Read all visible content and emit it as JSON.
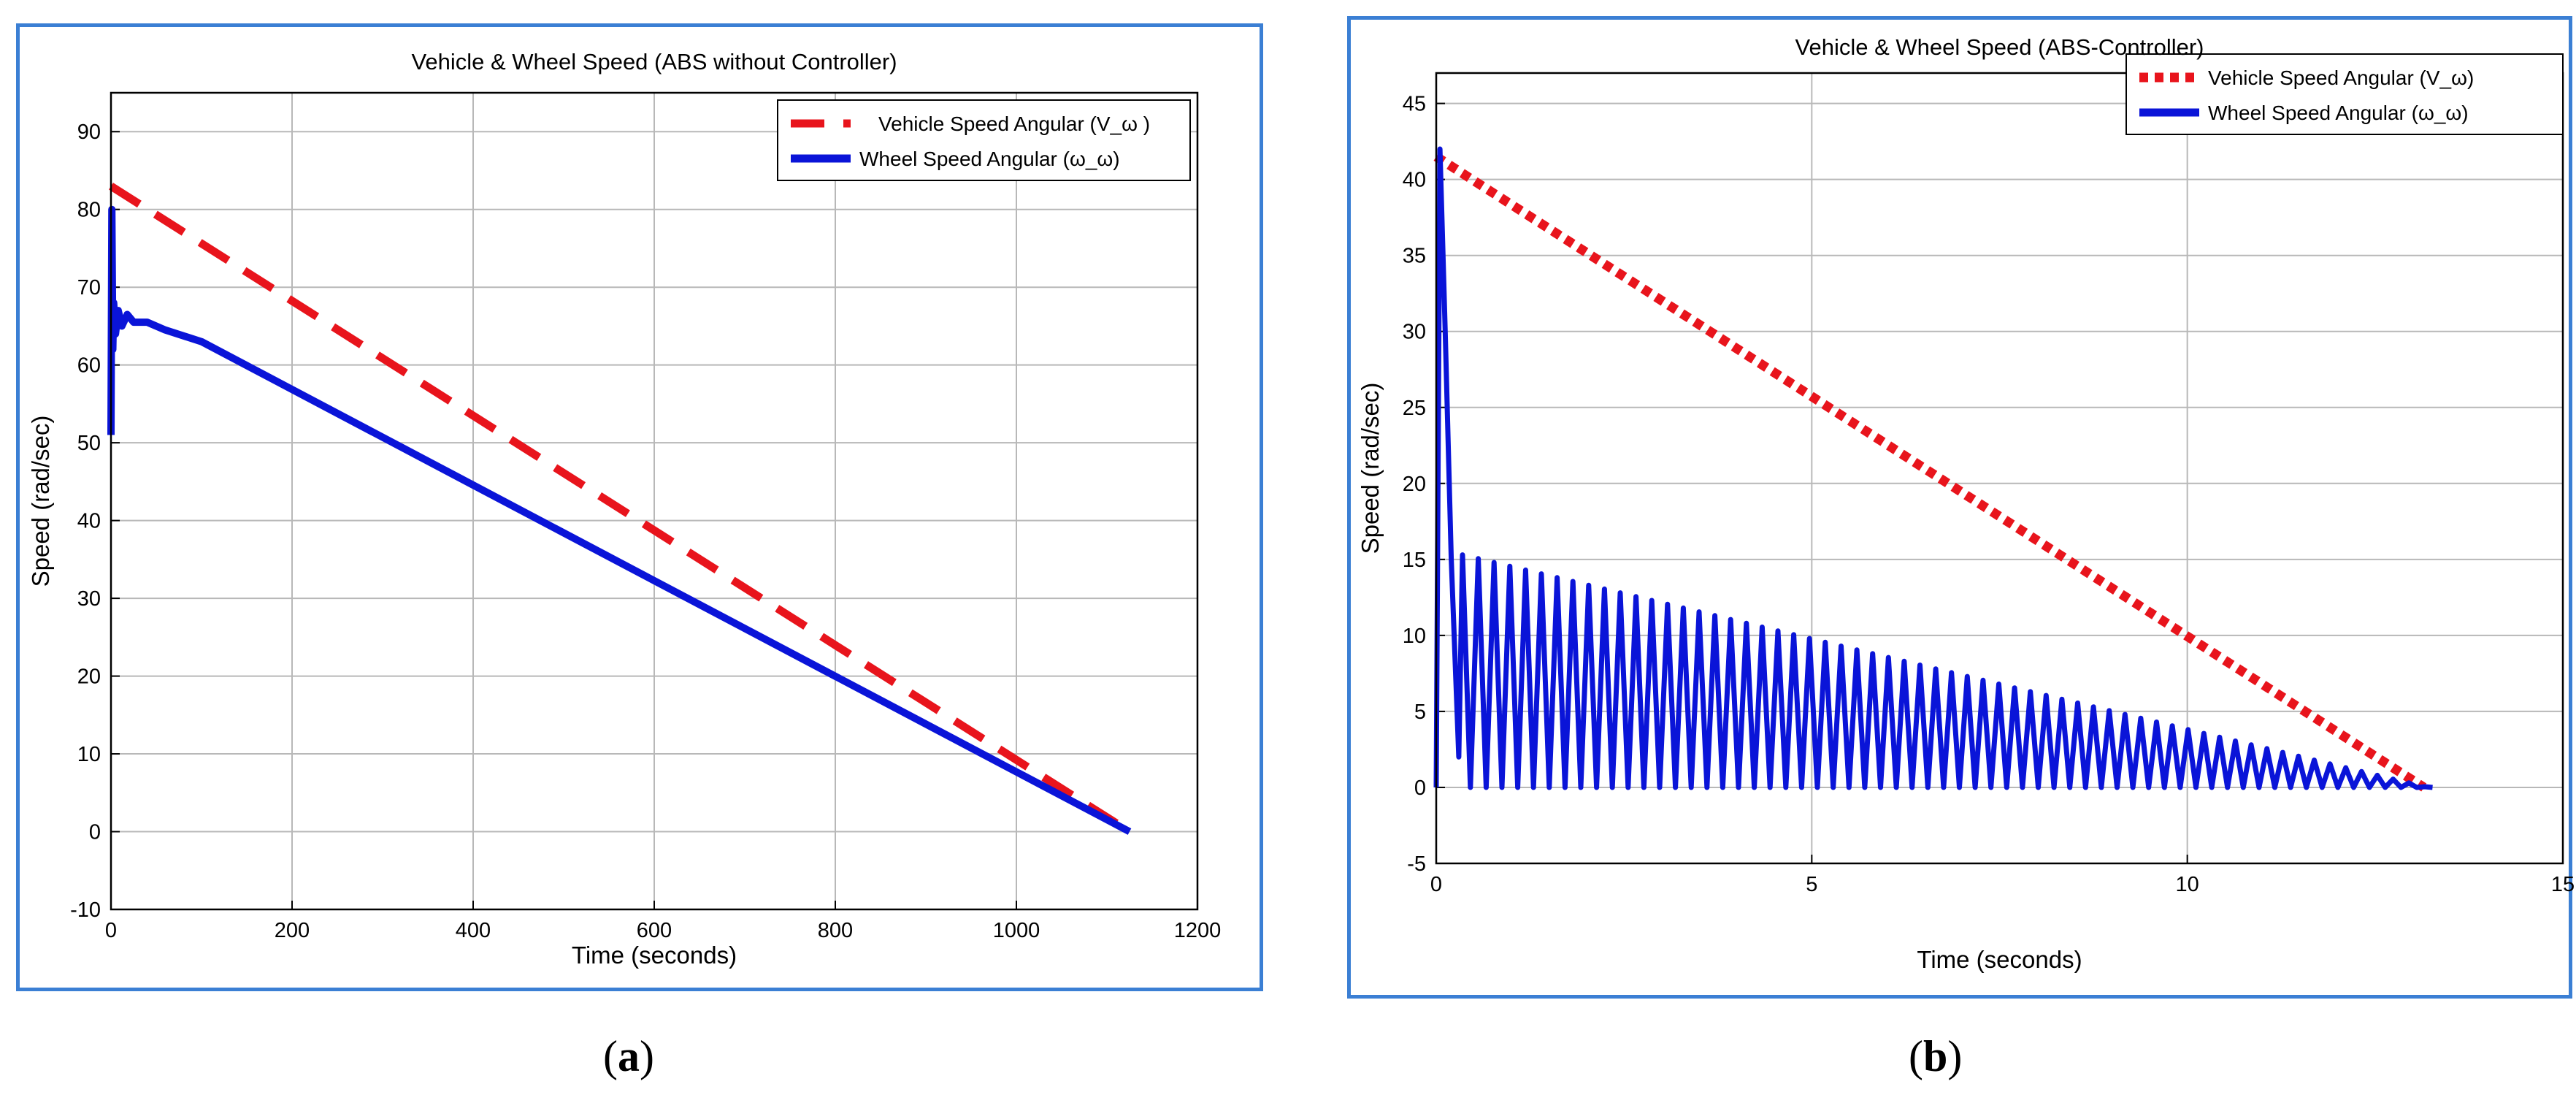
{
  "figure": {
    "caption_a": {
      "open": "(",
      "letter": "a",
      "close": ")"
    },
    "caption_b": {
      "open": "(",
      "letter": "b",
      "close": ")"
    }
  },
  "colors": {
    "panel_border": "#3b7fd4",
    "vehicle": "#e8141c",
    "wheel": "#0a14d8",
    "grid": "#b8b8b8"
  },
  "chart_data": [
    {
      "id": "a",
      "type": "line",
      "title": "Vehicle & Wheel Speed (ABS without Controller)",
      "xlabel": "Time (seconds)",
      "ylabel": "Speed (rad/sec)",
      "xlim": [
        0,
        1200
      ],
      "ylim": [
        -10,
        95
      ],
      "xticks": [
        0,
        200,
        400,
        600,
        800,
        1000,
        1200
      ],
      "yticks": [
        -10,
        0,
        10,
        20,
        30,
        40,
        50,
        60,
        70,
        80,
        90
      ],
      "grid": true,
      "legend": "top-right",
      "series": [
        {
          "name": "Vehicle Speed Angular (V_ω )",
          "style": "dashed",
          "color": "#e8141c",
          "x": [
            0,
            1125
          ],
          "y": [
            83,
            0
          ]
        },
        {
          "name": "Wheel Speed Angular (ω_ω)",
          "style": "solid",
          "color": "#0a14d8",
          "x": [
            0,
            1,
            2,
            3,
            5,
            8,
            12,
            18,
            25,
            40,
            60,
            100,
            1125
          ],
          "y": [
            51,
            80,
            62,
            68,
            64,
            67,
            65,
            66.5,
            65.5,
            65.5,
            64.5,
            63,
            0
          ]
        }
      ]
    },
    {
      "id": "b",
      "type": "line",
      "title": "Vehicle & Wheel Speed (ABS-Controller)",
      "xlabel": "Time (seconds)",
      "ylabel": "Speed (rad/sec)",
      "xlim": [
        0,
        15
      ],
      "ylim": [
        -5,
        47
      ],
      "xticks": [
        0,
        5,
        10,
        15
      ],
      "yticks": [
        -5,
        0,
        5,
        10,
        15,
        20,
        25,
        30,
        35,
        40,
        45
      ],
      "grid": true,
      "legend": "top-right",
      "series": [
        {
          "name": "Vehicle Speed Angular (V_ω)",
          "style": "dotted",
          "color": "#e8141c",
          "x": [
            0,
            13.15
          ],
          "y": [
            41.5,
            0
          ]
        },
        {
          "name": "Wheel Speed Angular (ω_ω)",
          "style": "solid",
          "color": "#0a14d8",
          "x": [
            0,
            0.05,
            0.12,
            0.2,
            0.3,
            0.35,
            13.2
          ],
          "y": [
            0,
            42,
            30,
            15,
            2,
            15.3,
            0
          ],
          "oscillation": {
            "period_s": 0.21,
            "start_s": 0.35,
            "end_s": 13.2,
            "min": 0,
            "envelope_start": 15.3,
            "envelope_end": 0
          }
        }
      ]
    }
  ]
}
